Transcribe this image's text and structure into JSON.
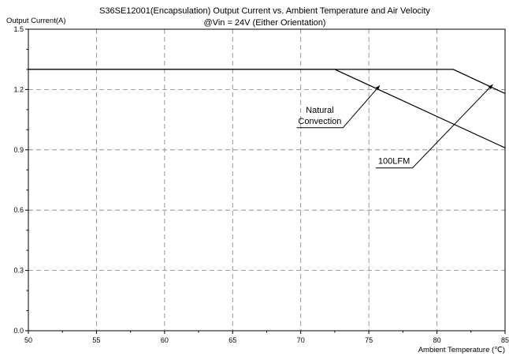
{
  "chart_data": {
    "type": "line",
    "title": "S36SE12001(Encapsulation)  Output Current vs. Ambient Temperature and Air Velocity",
    "subtitle": "@Vin = 24V (Either Orientation)",
    "ylabel": "Output Current(A)",
    "xlabel": "Ambient Temperature (℃)",
    "xlim": [
      50,
      85
    ],
    "ylim": [
      0,
      1.5
    ],
    "x_ticks": [
      50,
      55,
      60,
      65,
      70,
      75,
      80,
      85
    ],
    "y_ticks": [
      0.0,
      0.3,
      0.6,
      0.9,
      1.2,
      1.5
    ],
    "x_tick_labels": [
      "50",
      "55",
      "60",
      "65",
      "70",
      "75",
      "80",
      "85"
    ],
    "y_tick_labels": [
      "0.0",
      "0.3",
      "0.6",
      "0.9",
      "1.2",
      "1.5"
    ],
    "grid": true,
    "series": [
      {
        "name": "Natural Convection",
        "x": [
          50,
          72.5,
          85
        ],
        "y": [
          1.3,
          1.3,
          0.91
        ]
      },
      {
        "name": "100LFM",
        "x": [
          50,
          81.2,
          85
        ],
        "y": [
          1.3,
          1.3,
          1.18
        ]
      }
    ],
    "annotations": [
      {
        "lines": [
          "Natural",
          "Convection"
        ],
        "leader": [
          [
            69.7,
            1.01
          ],
          [
            73.1,
            1.01
          ],
          [
            75.8,
            1.22
          ]
        ]
      },
      {
        "lines": [
          "100LFM"
        ],
        "leader": [
          [
            75.5,
            0.81
          ],
          [
            78.2,
            0.81
          ],
          [
            84.1,
            1.225
          ]
        ]
      }
    ],
    "colors": {
      "line": "#000000",
      "grid": "#808080",
      "frame": "#000000"
    }
  }
}
